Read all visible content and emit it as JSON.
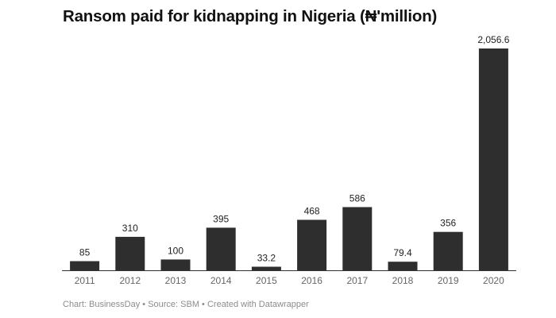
{
  "header": {
    "title": "Ransom paid for kidnapping in Nigeria (₦'million)"
  },
  "footer": {
    "chart_credit": "Chart: BusinessDay",
    "separator": " • ",
    "source": "Source: SBM",
    "tool": "Created with Datawrapper"
  },
  "colors": {
    "bar": "#2e2e2e",
    "axis": "#333333",
    "tick_text": "#666666"
  },
  "chart_data": {
    "type": "bar",
    "title": "Ransom paid for kidnapping in Nigeria (₦'million)",
    "xlabel": "",
    "ylabel": "",
    "categories": [
      "2011",
      "2012",
      "2013",
      "2014",
      "2015",
      "2016",
      "2017",
      "2018",
      "2019",
      "2020"
    ],
    "values": [
      85,
      310,
      100,
      395,
      33.2,
      468,
      586,
      79.4,
      356,
      2056.6
    ],
    "value_labels": [
      "85",
      "310",
      "100",
      "395",
      "33.2",
      "468",
      "586",
      "79.4",
      "356",
      "2,056.6"
    ],
    "ylim": [
      0,
      2056.6
    ],
    "grid": false,
    "legend": "none"
  }
}
